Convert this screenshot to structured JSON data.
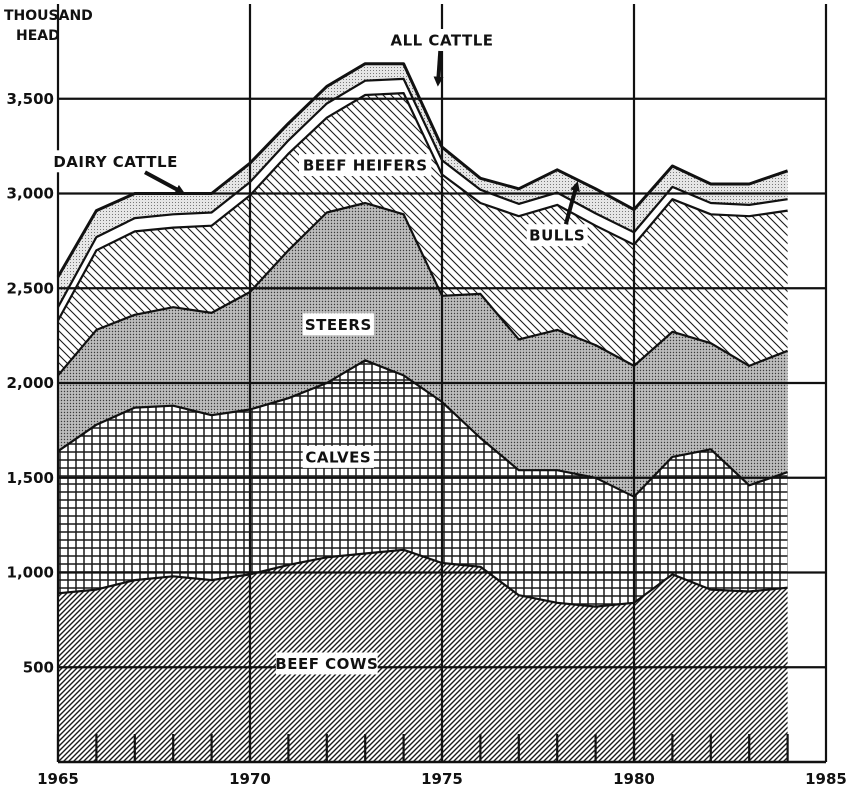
{
  "chart_data": {
    "type": "area",
    "stacked": true,
    "y_unit_label": [
      "THOUSAND",
      "HEAD"
    ],
    "xlim": [
      1965,
      1985
    ],
    "ylim": [
      0,
      4000
    ],
    "x_ticks": [
      1965,
      1970,
      1975,
      1980,
      1985
    ],
    "y_ticks": [
      500,
      1000,
      1500,
      2000,
      2500,
      3000,
      3500
    ],
    "y_tick_labels": [
      "500",
      "1,000",
      "1,500",
      "2,000",
      "2,500",
      "3,000",
      "3,500"
    ],
    "grid": true,
    "x": [
      1965,
      1966,
      1967,
      1968,
      1969,
      1970,
      1971,
      1972,
      1973,
      1974,
      1975,
      1976,
      1977,
      1978,
      1979,
      1980,
      1981,
      1982,
      1983,
      1984
    ],
    "series": [
      {
        "name": "BEEF COWS",
        "pattern": "diag-dense",
        "values": [
          890,
          910,
          960,
          980,
          960,
          990,
          1040,
          1080,
          1100,
          1120,
          1050,
          1030,
          880,
          840,
          820,
          840,
          990,
          910,
          900,
          920
        ]
      },
      {
        "name": "CALVES",
        "pattern": "crosshatch",
        "values": [
          750,
          870,
          910,
          900,
          870,
          870,
          880,
          920,
          1020,
          920,
          850,
          680,
          660,
          700,
          680,
          560,
          620,
          740,
          560,
          610
        ]
      },
      {
        "name": "STEERS",
        "pattern": "dots-dense",
        "values": [
          400,
          500,
          490,
          520,
          540,
          620,
          780,
          900,
          830,
          850,
          560,
          760,
          690,
          740,
          700,
          690,
          660,
          560,
          630,
          640
        ]
      },
      {
        "name": "BEEF HEIFERS",
        "pattern": "diag-light",
        "values": [
          290,
          420,
          440,
          420,
          460,
          510,
          510,
          500,
          570,
          640,
          640,
          480,
          650,
          660,
          630,
          640,
          700,
          680,
          790,
          740
        ]
      },
      {
        "name": "BULLS",
        "pattern": "white",
        "values": [
          70,
          70,
          70,
          70,
          70,
          70,
          70,
          75,
          75,
          75,
          75,
          70,
          65,
          65,
          65,
          65,
          65,
          60,
          60,
          60
        ]
      },
      {
        "name": "DAIRY CATTLE",
        "pattern": "dots-light",
        "values": [
          160,
          140,
          130,
          110,
          100,
          100,
          90,
          90,
          90,
          80,
          70,
          60,
          80,
          120,
          130,
          120,
          110,
          100,
          110,
          150
        ]
      }
    ],
    "labels": [
      {
        "text": "ALL CATTLE",
        "x": 1975.0,
        "y": 3810,
        "kind": "annotation",
        "arrow": {
          "x": 1974.9,
          "y": 3590
        }
      },
      {
        "text": "DAIRY CATTLE",
        "x": 1966.5,
        "y": 3170,
        "kind": "annotation",
        "arrow": {
          "x": 1968.2,
          "y": 3010
        }
      },
      {
        "text": "BEEF HEIFERS",
        "x": 1973.0,
        "y": 3150,
        "kind": "inline"
      },
      {
        "text": "BULLS",
        "x": 1978.0,
        "y": 2780,
        "kind": "annotation",
        "arrow": {
          "x": 1978.5,
          "y": 3040
        }
      },
      {
        "text": "STEERS",
        "x": 1972.3,
        "y": 2310,
        "kind": "inline"
      },
      {
        "text": "CALVES",
        "x": 1972.3,
        "y": 1610,
        "kind": "inline"
      },
      {
        "text": "BEEF COWS",
        "x": 1972.0,
        "y": 520,
        "kind": "inline"
      }
    ]
  }
}
